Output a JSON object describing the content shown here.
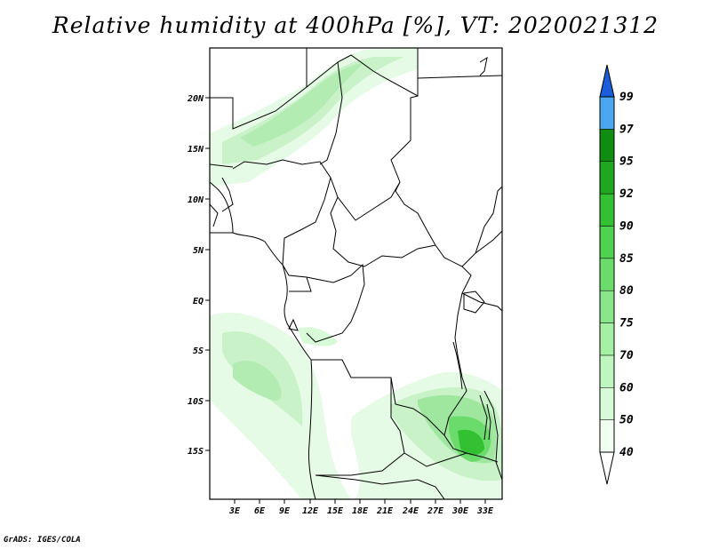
{
  "title": "Relative humidity at 400hPa [%], VT: 2020021312",
  "credit": "GrADS: IGES/COLA",
  "map": {
    "lat_labels": [
      "20N",
      "15N",
      "10N",
      "5N",
      "EQ",
      "5S",
      "10S",
      "15S"
    ],
    "lon_labels": [
      "3E",
      "6E",
      "9E",
      "12E",
      "15E",
      "18E",
      "21E",
      "24E",
      "27E",
      "30E",
      "33E"
    ]
  },
  "colorbar": {
    "levels": [
      "40",
      "50",
      "60",
      "70",
      "75",
      "80",
      "85",
      "90",
      "92",
      "95",
      "97",
      "99"
    ],
    "colors": [
      "#f0fff0",
      "#d7fad7",
      "#bff5bf",
      "#a6f0a6",
      "#8ae68a",
      "#6bdc6b",
      "#4fd24f",
      "#33c033",
      "#1fa81f",
      "#108c10",
      "#4da6f0",
      "#2d7de6",
      "#1a5cd9"
    ]
  }
}
